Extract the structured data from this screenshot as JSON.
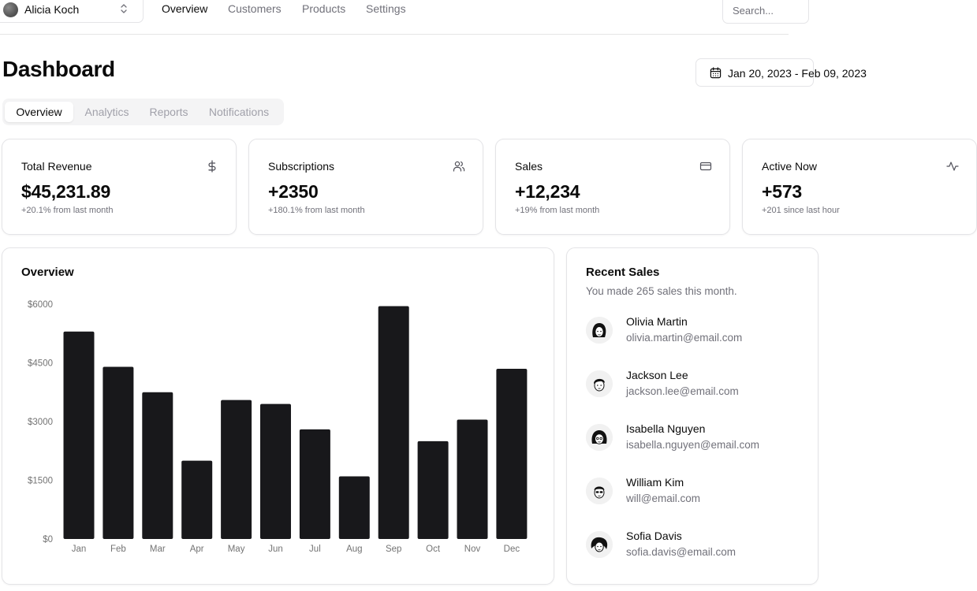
{
  "header": {
    "team": {
      "name": "Alicia Koch",
      "avatar_icon": "avatar-icon",
      "chevron_icon": "chevrons-up-down-icon"
    },
    "nav": [
      {
        "label": "Overview",
        "active": true
      },
      {
        "label": "Customers",
        "active": false
      },
      {
        "label": "Products",
        "active": false
      },
      {
        "label": "Settings",
        "active": false
      }
    ],
    "search": {
      "placeholder": "Search...",
      "value": ""
    }
  },
  "page": {
    "title": "Dashboard",
    "date_range": {
      "label": "Jan 20, 2023 - Feb 09, 2023",
      "icon": "calendar-icon"
    }
  },
  "tabs": [
    {
      "label": "Overview",
      "active": true
    },
    {
      "label": "Analytics",
      "active": false
    },
    {
      "label": "Reports",
      "active": false
    },
    {
      "label": "Notifications",
      "active": false
    }
  ],
  "stats": [
    {
      "label": "Total Revenue",
      "value": "$45,231.89",
      "sub": "+20.1% from last month",
      "icon": "dollar-icon"
    },
    {
      "label": "Subscriptions",
      "value": "+2350",
      "sub": "+180.1% from last month",
      "icon": "users-icon"
    },
    {
      "label": "Sales",
      "value": "+12,234",
      "sub": "+19% from last month",
      "icon": "credit-card-icon"
    },
    {
      "label": "Active Now",
      "value": "+573",
      "sub": "+201 since last hour",
      "icon": "activity-icon"
    }
  ],
  "overview": {
    "title": "Overview",
    "chart_data": {
      "type": "bar",
      "title": "",
      "xlabel": "",
      "ylabel": "",
      "categories": [
        "Jan",
        "Feb",
        "Mar",
        "Apr",
        "May",
        "Jun",
        "Jul",
        "Aug",
        "Sep",
        "Oct",
        "Nov",
        "Dec"
      ],
      "values": [
        5300,
        4400,
        3750,
        2000,
        3550,
        3450,
        2800,
        1600,
        5950,
        2500,
        3050,
        4350
      ],
      "yticks": [
        "$0",
        "$1500",
        "$3000",
        "$4500",
        "$6000"
      ],
      "ytick_values": [
        0,
        1500,
        3000,
        4500,
        6000
      ],
      "ylim": [
        0,
        6000
      ],
      "grid": false,
      "bar_color": "#18181b"
    }
  },
  "recent_sales": {
    "title": "Recent Sales",
    "description": "You made 265 sales this month.",
    "items": [
      {
        "name": "Olivia Martin",
        "email": "olivia.martin@email.com",
        "avatar": "avatar-icon"
      },
      {
        "name": "Jackson Lee",
        "email": "jackson.lee@email.com",
        "avatar": "avatar-icon"
      },
      {
        "name": "Isabella Nguyen",
        "email": "isabella.nguyen@email.com",
        "avatar": "avatar-icon"
      },
      {
        "name": "William Kim",
        "email": "will@email.com",
        "avatar": "avatar-icon"
      },
      {
        "name": "Sofia Davis",
        "email": "sofia.davis@email.com",
        "avatar": "avatar-icon"
      }
    ]
  }
}
